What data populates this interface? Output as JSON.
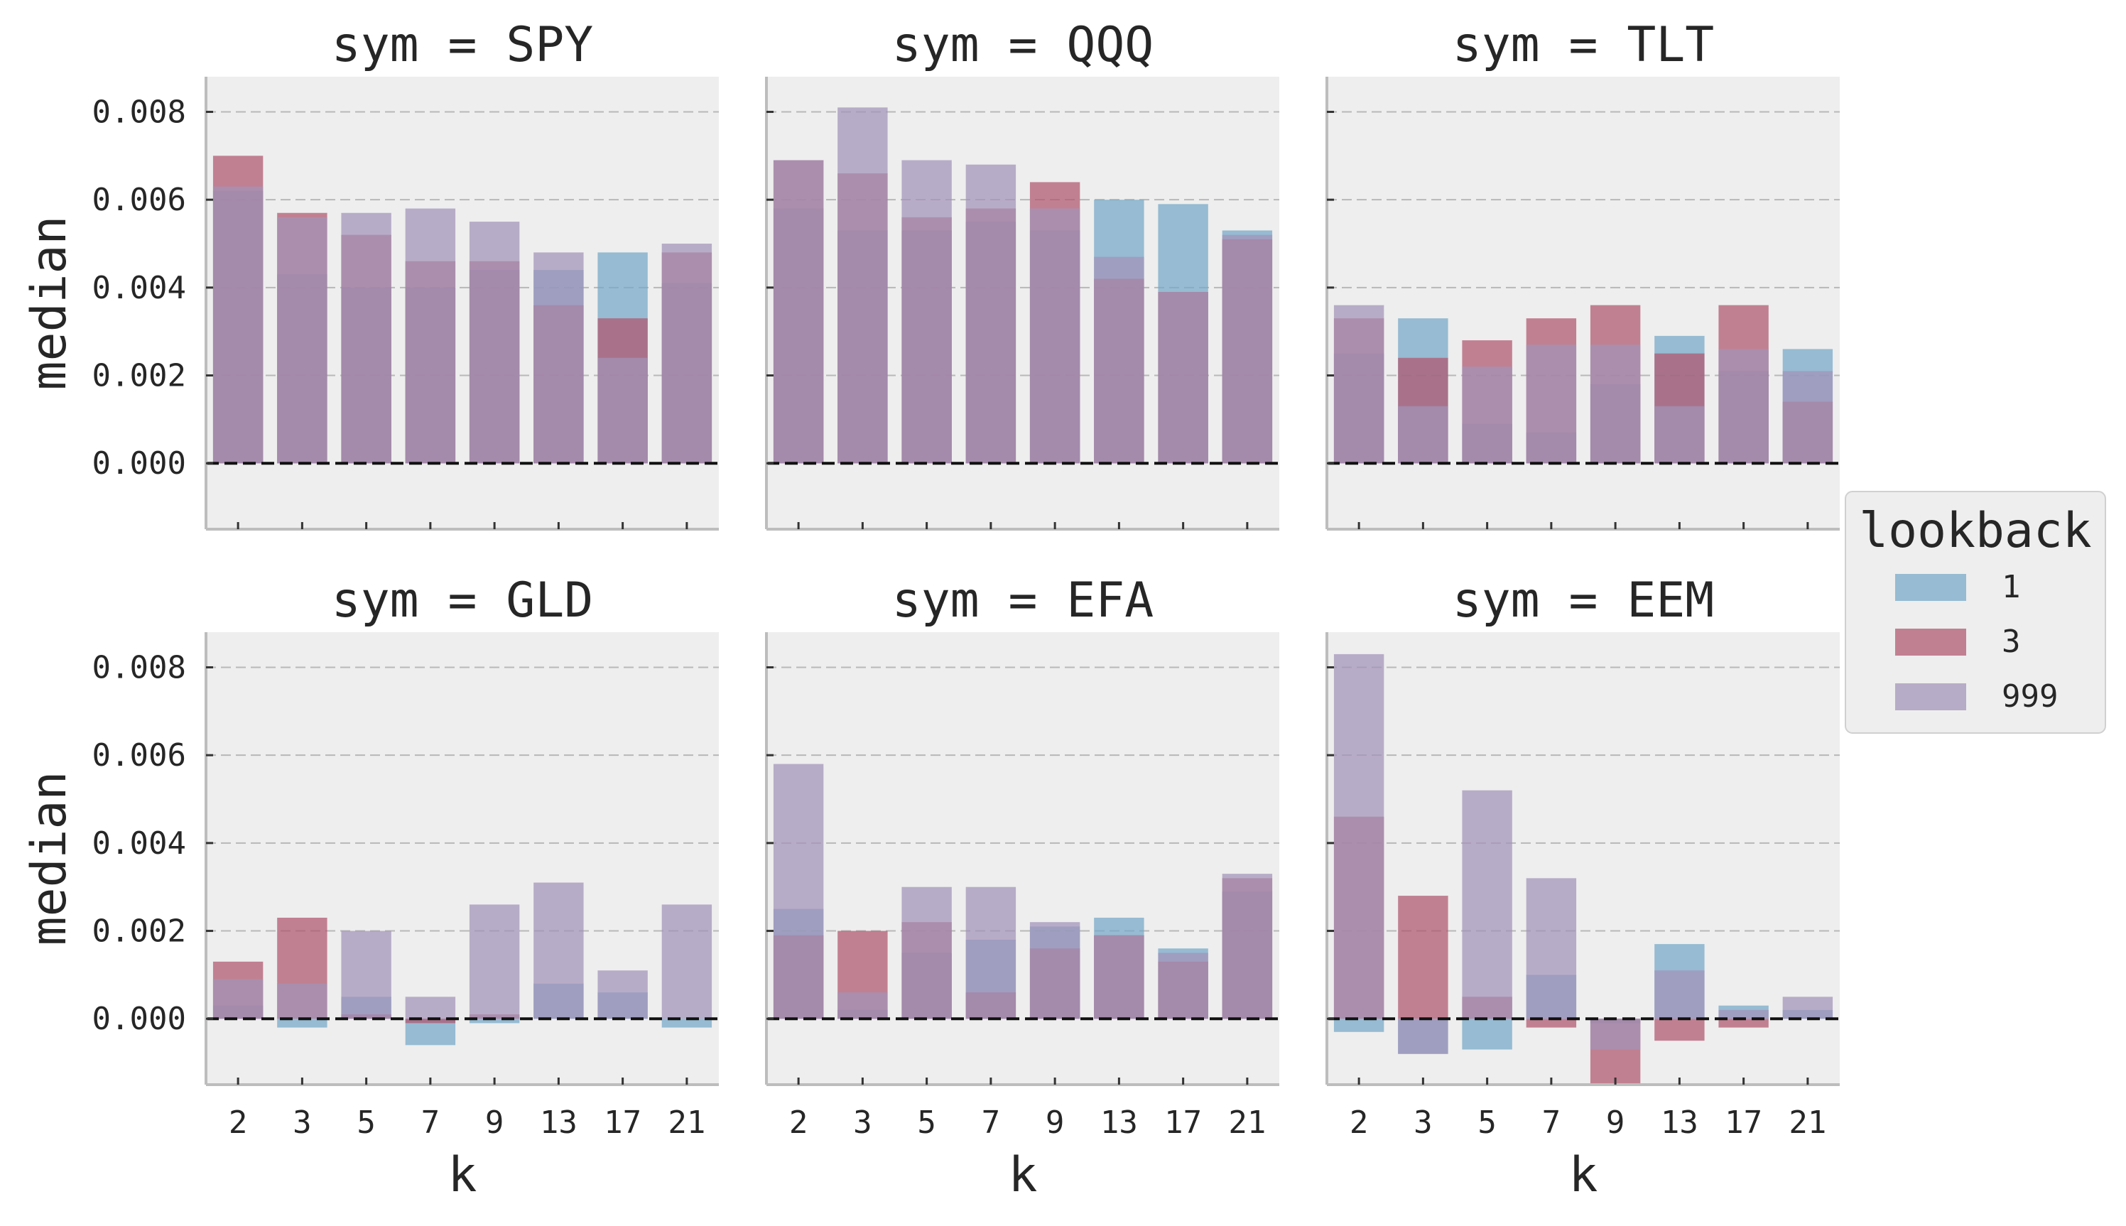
{
  "chart_data": {
    "type": "bar",
    "layout": "facet-grid 2x3",
    "categories": [
      "2",
      "3",
      "5",
      "7",
      "9",
      "13",
      "17",
      "21"
    ],
    "xlabel": "k",
    "ylabel": "median",
    "ylim": [
      -0.0015,
      0.0088
    ],
    "yticks": [
      "0.000",
      "0.002",
      "0.004",
      "0.006",
      "0.008"
    ],
    "grid": "horizontal dashed",
    "zero_line": "black dashed",
    "legend": {
      "title": "lookback",
      "placement": "right",
      "entries": [
        "1",
        "3",
        "999"
      ]
    },
    "colors": {
      "1": "#75a8c7",
      "3": "#b0566e",
      "999": "#a293b9",
      "panel_bg": "#eeeeee"
    },
    "panels": [
      {
        "title": "sym = SPY",
        "series": [
          {
            "name": "1",
            "values": [
              0.0062,
              0.0043,
              0.004,
              0.004,
              0.0044,
              0.0044,
              0.0048,
              0.0041
            ]
          },
          {
            "name": "3",
            "values": [
              0.007,
              0.0057,
              0.0052,
              0.0046,
              0.0046,
              0.0036,
              0.0033,
              0.0048
            ]
          },
          {
            "name": "999",
            "values": [
              0.0063,
              0.0056,
              0.0057,
              0.0058,
              0.0055,
              0.0048,
              0.0024,
              0.005
            ]
          }
        ]
      },
      {
        "title": "sym = QQQ",
        "series": [
          {
            "name": "1",
            "values": [
              0.0058,
              0.0053,
              0.0053,
              0.0055,
              0.0053,
              0.006,
              0.0059,
              0.0053
            ]
          },
          {
            "name": "3",
            "values": [
              0.0069,
              0.0066,
              0.0056,
              0.0058,
              0.0064,
              0.0042,
              0.0039,
              0.0051
            ]
          },
          {
            "name": "999",
            "values": [
              0.0069,
              0.0081,
              0.0069,
              0.0068,
              0.0058,
              0.0047,
              0.0039,
              0.0052
            ]
          }
        ]
      },
      {
        "title": "sym = TLT",
        "series": [
          {
            "name": "1",
            "values": [
              0.0025,
              0.0033,
              0.0009,
              0.0007,
              0.0018,
              0.0029,
              0.0021,
              0.0026
            ]
          },
          {
            "name": "3",
            "values": [
              0.0033,
              0.0024,
              0.0028,
              0.0033,
              0.0036,
              0.0025,
              0.0036,
              0.0014
            ]
          },
          {
            "name": "999",
            "values": [
              0.0036,
              0.0013,
              0.0022,
              0.0027,
              0.0027,
              0.0013,
              0.0026,
              0.0021
            ]
          }
        ]
      },
      {
        "title": "sym = GLD",
        "series": [
          {
            "name": "1",
            "values": [
              0.0003,
              -0.0002,
              0.0005,
              -0.0006,
              -0.0001,
              0.0008,
              0.0006,
              -0.0002
            ]
          },
          {
            "name": "3",
            "values": [
              0.0013,
              0.0023,
              0.0001,
              -0.0001,
              0.0001,
              0.0,
              0.0,
              0.0
            ]
          },
          {
            "name": "999",
            "values": [
              0.0009,
              0.0008,
              0.002,
              0.0005,
              0.0026,
              0.0031,
              0.0011,
              0.0026
            ]
          }
        ]
      },
      {
        "title": "sym = EFA",
        "series": [
          {
            "name": "1",
            "values": [
              0.0025,
              0.0002,
              0.0015,
              0.0018,
              0.0021,
              0.0023,
              0.0016,
              0.0029
            ]
          },
          {
            "name": "3",
            "values": [
              0.0019,
              0.002,
              0.0022,
              0.0006,
              0.0016,
              0.0019,
              0.0013,
              0.0032
            ]
          },
          {
            "name": "999",
            "values": [
              0.0058,
              0.0006,
              0.003,
              0.003,
              0.0022,
              0.0019,
              0.0015,
              0.0033
            ]
          }
        ]
      },
      {
        "title": "sym = EEM",
        "series": [
          {
            "name": "1",
            "values": [
              -0.0003,
              -0.0008,
              -0.0007,
              0.001,
              -0.0001,
              0.0017,
              0.0003,
              0.0002
            ]
          },
          {
            "name": "3",
            "values": [
              0.0046,
              0.0028,
              0.0005,
              -0.0002,
              -0.0015,
              -0.0005,
              -0.0002,
              0.0
            ]
          },
          {
            "name": "999",
            "values": [
              0.0083,
              -0.0008,
              0.0052,
              0.0032,
              -0.0007,
              0.0011,
              0.0002,
              0.0005
            ]
          }
        ]
      }
    ]
  }
}
